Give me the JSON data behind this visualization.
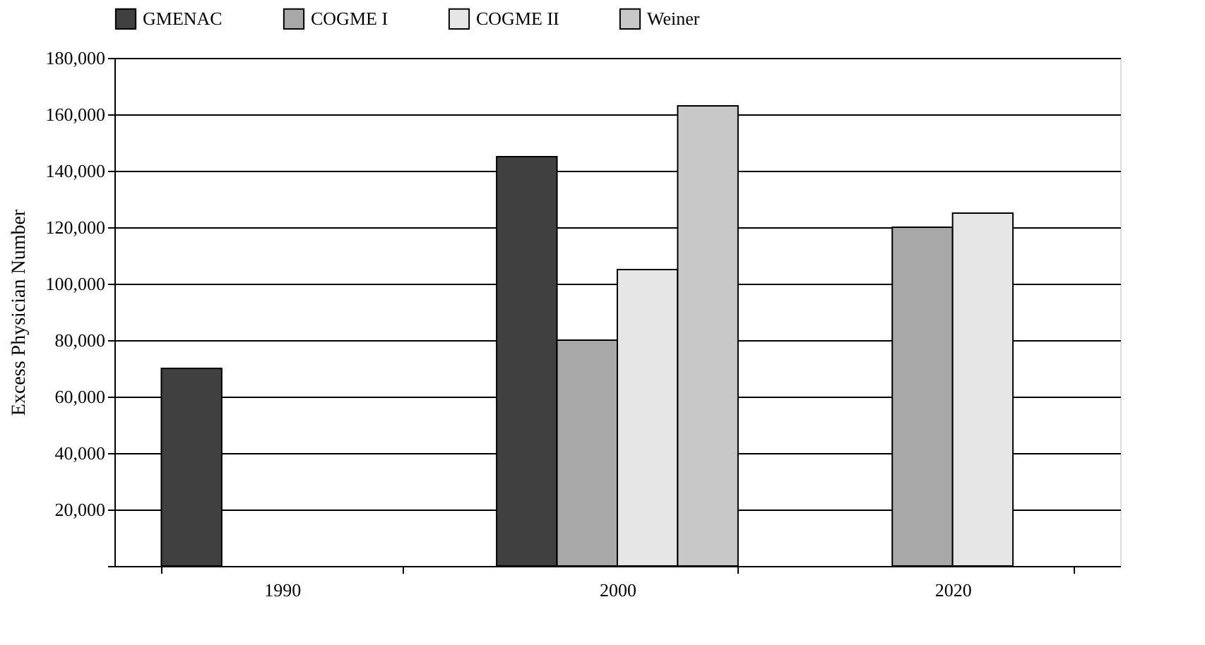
{
  "chart_data": {
    "type": "bar",
    "ylabel": "Excess Physician Number",
    "categories": [
      "1990",
      "2000",
      "2020"
    ],
    "series": [
      {
        "name": "GMENAC",
        "color": "#404040",
        "values": [
          70000,
          145000,
          null
        ]
      },
      {
        "name": "COGME I",
        "color": "#a8a8a8",
        "values": [
          null,
          80000,
          120000
        ]
      },
      {
        "name": "COGME II",
        "color": "#e6e6e6",
        "values": [
          null,
          105000,
          125000
        ]
      },
      {
        "name": "Weiner",
        "color": "#c8c8c8",
        "values": [
          null,
          163000,
          null
        ]
      }
    ],
    "ylim": [
      0,
      180000
    ],
    "yticks": [
      {
        "value": 0,
        "label": null
      },
      {
        "value": 20000,
        "label": "20,000"
      },
      {
        "value": 40000,
        "label": "40,000"
      },
      {
        "value": 60000,
        "label": "60,000"
      },
      {
        "value": 80000,
        "label": "80,000"
      },
      {
        "value": 100000,
        "label": "100,000"
      },
      {
        "value": 120000,
        "label": "120,000"
      },
      {
        "value": 140000,
        "label": "140,000"
      },
      {
        "value": 160000,
        "label": "160,000"
      },
      {
        "value": 180000,
        "label": "180,000"
      }
    ],
    "grid": "y",
    "legend": "top"
  }
}
